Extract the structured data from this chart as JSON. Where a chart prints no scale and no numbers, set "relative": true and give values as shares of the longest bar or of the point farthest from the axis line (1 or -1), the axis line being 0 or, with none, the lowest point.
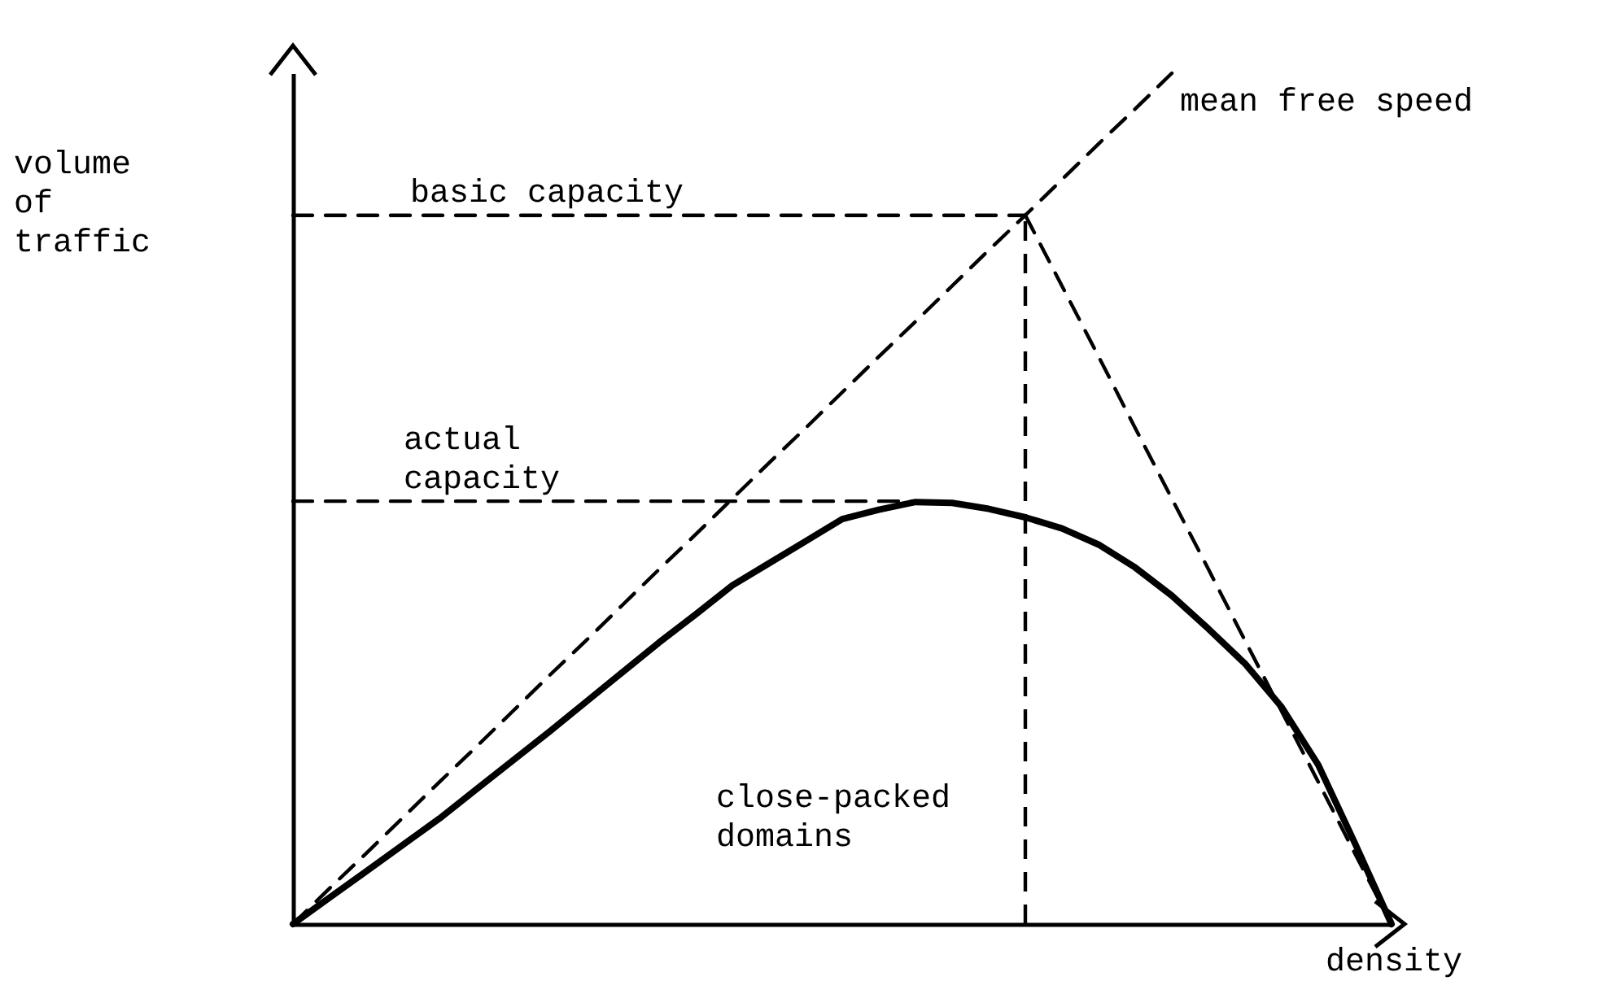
{
  "chart_data": {
    "type": "line",
    "relative": true,
    "xlabel": "density",
    "ylabel": "volume\nof\ntraffic",
    "categories": [
      null,
      null,
      null,
      null,
      null,
      null,
      null,
      null,
      null,
      null,
      null,
      null,
      null,
      null,
      null,
      null,
      null,
      null,
      null,
      null,
      null,
      null,
      null,
      null,
      null,
      null,
      null,
      null,
      null,
      null,
      null
    ],
    "series": [
      {
        "values": [
          0,
          0.031,
          0.062,
          0.093,
          0.124,
          0.158,
          0.192,
          0.226,
          0.261,
          0.296,
          0.331,
          0.364,
          0.398,
          0.424,
          0.45,
          0.476,
          0.487,
          0.496,
          0.495,
          0.488,
          0.478,
          0.465,
          0.446,
          0.419,
          0.386,
          0.347,
          0.306,
          0.255,
          0.187,
          0.095,
          0
        ],
        "color": "#000000",
        "line_style": "solid"
      },
      {
        "values": [
          0,
          0.042,
          0.083,
          0.125,
          0.167,
          0.208,
          0.25,
          0.292,
          0.333,
          0.375,
          0.417,
          0.458,
          0.5,
          0.542,
          0.583,
          0.625,
          0.667,
          0.708,
          0.75,
          0.792,
          0.833,
          0.875,
          0.917,
          0.958,
          1,
          null,
          null,
          null,
          null,
          null,
          null
        ],
        "color": "#000000",
        "line_style": "dashed"
      },
      {
        "values": [
          null,
          null,
          null,
          null,
          null,
          null,
          null,
          null,
          null,
          null,
          null,
          null,
          null,
          null,
          null,
          null,
          null,
          null,
          null,
          null,
          0.833,
          0.75,
          0.667,
          0.583,
          0.5,
          0.417,
          0.333,
          0.25,
          0.167,
          0.083,
          0
        ],
        "color": "#000000",
        "line_style": "dashed"
      },
      {
        "values": [
          0.833,
          0.833,
          0.833,
          0.833,
          0.833,
          0.833,
          0.833,
          0.833,
          0.833,
          0.833,
          0.833,
          0.833,
          0.833,
          0.833,
          0.833,
          0.833,
          0.833,
          0.833,
          0.833,
          0.833,
          0.833,
          null,
          null,
          null,
          null,
          null,
          null,
          null,
          null,
          null,
          null
        ],
        "color": "#000000",
        "line_style": "dashed"
      },
      {
        "values": [
          0.497,
          0.497,
          0.497,
          0.497,
          0.497,
          0.497,
          0.497,
          0.497,
          0.497,
          0.497,
          0.497,
          0.497,
          0.497,
          0.497,
          0.497,
          0.497,
          0.497,
          0.497,
          null,
          null,
          null,
          null,
          null,
          null,
          null,
          null,
          null,
          null,
          null,
          null,
          null
        ],
        "color": "#000000",
        "line_style": "dashed"
      }
    ],
    "annotations": [
      "mean free speed",
      "basic capacity",
      "actual\ncapacity",
      "close-packed\ndomains"
    ]
  }
}
